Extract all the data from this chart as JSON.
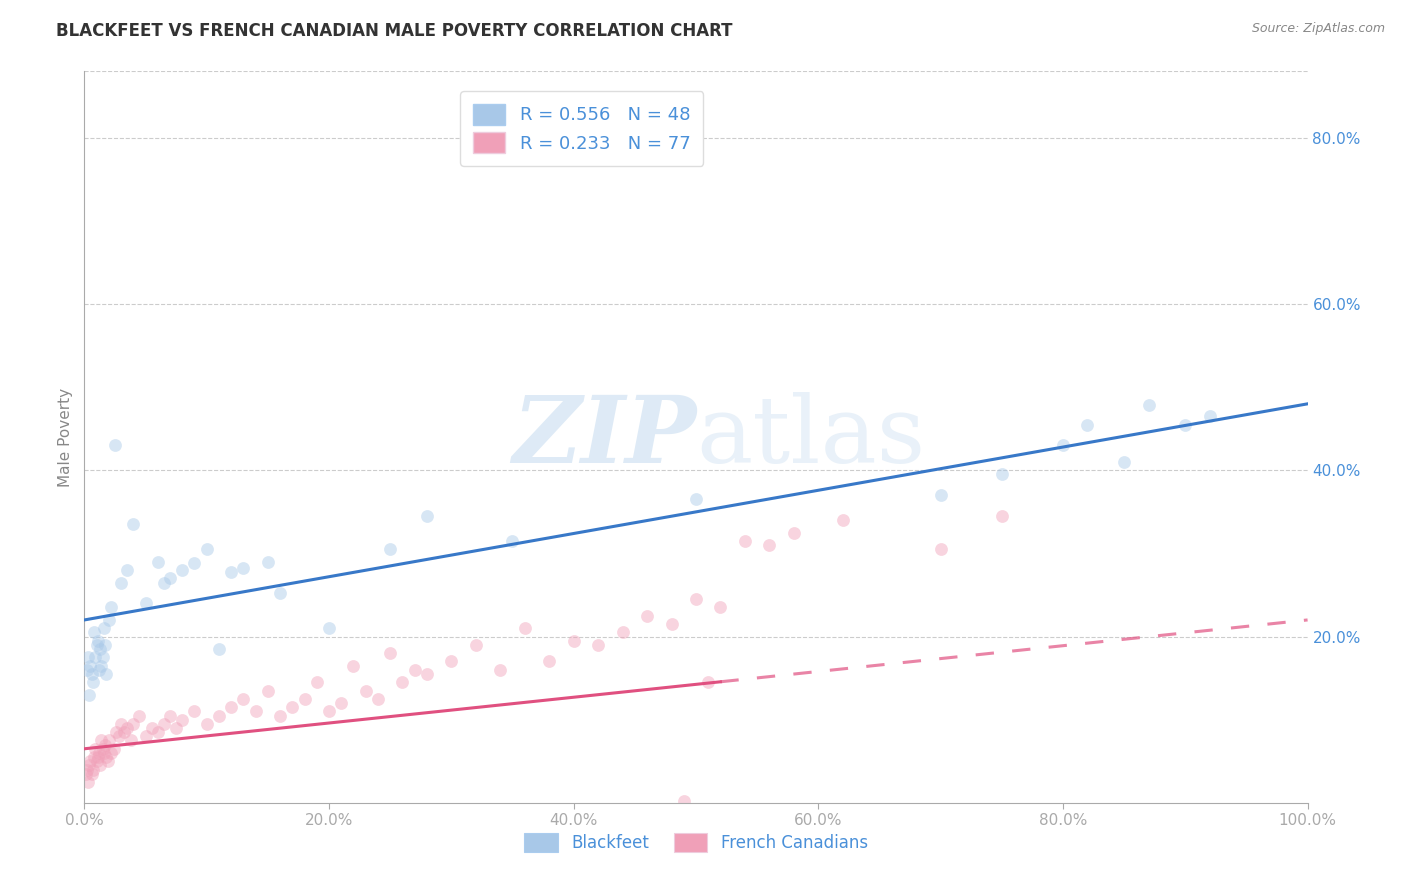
{
  "title": "BLACKFEET VS FRENCH CANADIAN MALE POVERTY CORRELATION CHART",
  "source": "Source: ZipAtlas.com",
  "ylabel": "Male Poverty",
  "watermark_zip": "ZIP",
  "watermark_atlas": "atlas",
  "blackfeet": {
    "R": 0.556,
    "N": 48,
    "color": "#a8c8e8",
    "line_color": "#3878c8",
    "label": "Blackfeet",
    "x": [
      0.002,
      0.003,
      0.004,
      0.005,
      0.006,
      0.007,
      0.008,
      0.009,
      0.01,
      0.011,
      0.012,
      0.013,
      0.014,
      0.015,
      0.016,
      0.017,
      0.018,
      0.02,
      0.022,
      0.025,
      0.03,
      0.035,
      0.04,
      0.05,
      0.06,
      0.065,
      0.07,
      0.08,
      0.09,
      0.1,
      0.11,
      0.12,
      0.13,
      0.15,
      0.16,
      0.2,
      0.25,
      0.28,
      0.35,
      0.5,
      0.7,
      0.75,
      0.8,
      0.82,
      0.85,
      0.87,
      0.9,
      0.92
    ],
    "y": [
      0.16,
      0.175,
      0.13,
      0.165,
      0.155,
      0.145,
      0.205,
      0.175,
      0.19,
      0.195,
      0.16,
      0.185,
      0.165,
      0.175,
      0.21,
      0.19,
      0.155,
      0.22,
      0.235,
      0.43,
      0.265,
      0.28,
      0.335,
      0.24,
      0.29,
      0.265,
      0.27,
      0.28,
      0.288,
      0.305,
      0.185,
      0.278,
      0.282,
      0.29,
      0.252,
      0.21,
      0.305,
      0.345,
      0.315,
      0.365,
      0.37,
      0.395,
      0.43,
      0.455,
      0.41,
      0.478,
      0.455,
      0.465
    ]
  },
  "french": {
    "R": 0.233,
    "N": 77,
    "color": "#f0a0b8",
    "line_color": "#e05080",
    "label": "French Canadians",
    "x": [
      0.001,
      0.002,
      0.003,
      0.004,
      0.005,
      0.006,
      0.007,
      0.008,
      0.009,
      0.01,
      0.011,
      0.012,
      0.013,
      0.014,
      0.015,
      0.016,
      0.017,
      0.018,
      0.019,
      0.02,
      0.022,
      0.024,
      0.026,
      0.028,
      0.03,
      0.032,
      0.035,
      0.038,
      0.04,
      0.045,
      0.05,
      0.055,
      0.06,
      0.065,
      0.07,
      0.075,
      0.08,
      0.09,
      0.1,
      0.11,
      0.12,
      0.13,
      0.14,
      0.15,
      0.16,
      0.17,
      0.18,
      0.19,
      0.2,
      0.21,
      0.22,
      0.23,
      0.24,
      0.25,
      0.26,
      0.27,
      0.28,
      0.3,
      0.32,
      0.34,
      0.36,
      0.38,
      0.4,
      0.42,
      0.44,
      0.46,
      0.48,
      0.5,
      0.52,
      0.54,
      0.56,
      0.58,
      0.62,
      0.7,
      0.75,
      0.49,
      0.51
    ],
    "y": [
      0.035,
      0.04,
      0.025,
      0.045,
      0.05,
      0.035,
      0.04,
      0.055,
      0.065,
      0.05,
      0.055,
      0.06,
      0.045,
      0.075,
      0.065,
      0.06,
      0.07,
      0.055,
      0.05,
      0.075,
      0.06,
      0.065,
      0.085,
      0.08,
      0.095,
      0.085,
      0.09,
      0.075,
      0.095,
      0.105,
      0.08,
      0.09,
      0.085,
      0.095,
      0.105,
      0.09,
      0.1,
      0.11,
      0.095,
      0.105,
      0.115,
      0.125,
      0.11,
      0.135,
      0.105,
      0.115,
      0.125,
      0.145,
      0.11,
      0.12,
      0.165,
      0.135,
      0.125,
      0.18,
      0.145,
      0.16,
      0.155,
      0.17,
      0.19,
      0.16,
      0.21,
      0.17,
      0.195,
      0.19,
      0.205,
      0.225,
      0.215,
      0.245,
      0.235,
      0.315,
      0.31,
      0.325,
      0.34,
      0.305,
      0.345,
      0.002,
      0.145
    ]
  },
  "xlim": [
    0.0,
    1.0
  ],
  "ylim": [
    0.0,
    0.88
  ],
  "xticks": [
    0.0,
    0.2,
    0.4,
    0.6,
    0.8,
    1.0
  ],
  "xtick_labels": [
    "0.0%",
    "20.0%",
    "40.0%",
    "60.0%",
    "80.0%",
    "100.0%"
  ],
  "yticks_right": [
    0.2,
    0.4,
    0.6,
    0.8
  ],
  "ytick_labels_right": [
    "20.0%",
    "40.0%",
    "60.0%",
    "80.0%"
  ],
  "grid_color": "#cccccc",
  "background_color": "#ffffff",
  "title_fontsize": 12,
  "tick_label_color": "#4a90d9",
  "legend_text_color": "#4a90d9",
  "marker_size": 85,
  "marker_alpha": 0.45,
  "line_width": 2.2,
  "french_line_solid_end": 0.52,
  "blackfeet_line_intercept": 0.22,
  "blackfeet_line_slope": 0.26,
  "french_line_intercept": 0.065,
  "french_line_slope": 0.155
}
